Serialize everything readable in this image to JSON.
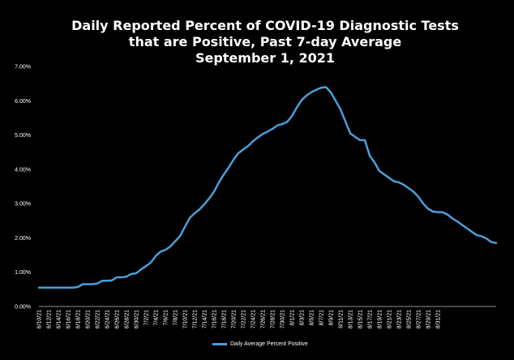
{
  "chart_data": {
    "type": "line",
    "title_lines": [
      "Daily Reported Percent of COVID-19 Diagnostic Tests",
      "that are Positive, Past 7-day Average",
      "September 1, 2021"
    ],
    "xlabel": "",
    "ylabel": "",
    "ylim": [
      0,
      0.07
    ],
    "y_ticks": [
      "0.00%",
      "1.00%",
      "2.00%",
      "3.00%",
      "4.00%",
      "5.00%",
      "6.00%",
      "7.00%"
    ],
    "x_tick_labels": [
      "6/10/21",
      "6/12/21",
      "6/14/21",
      "6/16/21",
      "6/18/21",
      "6/20/21",
      "6/22/21",
      "6/24/21",
      "6/26/21",
      "6/28/21",
      "6/30/21",
      "7/2/21",
      "7/4/21",
      "7/6/21",
      "7/8/21",
      "7/10/21",
      "7/12/21",
      "7/14/21",
      "7/16/21",
      "7/18/21",
      "7/20/21",
      "7/22/21",
      "7/24/21",
      "7/26/21",
      "7/28/21",
      "7/30/21",
      "8/1/21",
      "8/3/21",
      "8/5/21",
      "8/7/21",
      "8/9/21",
      "8/11/21",
      "8/13/21",
      "8/15/21",
      "8/17/21",
      "8/19/21",
      "8/21/21",
      "8/23/21",
      "8/25/21",
      "8/27/21",
      "8/29/21",
      "8/31/21"
    ],
    "x_start": "6/10/21",
    "grid": false,
    "legend_position": "bottom",
    "series": [
      {
        "name": "Daily Average Percent Positive",
        "color": "#4a9fd8",
        "values": [
          0.0055,
          0.0055,
          0.0055,
          0.0055,
          0.0055,
          0.0055,
          0.0055,
          0.0055,
          0.0057,
          0.0065,
          0.0065,
          0.0065,
          0.0067,
          0.0075,
          0.0075,
          0.0076,
          0.0085,
          0.0085,
          0.0087,
          0.0095,
          0.0097,
          0.0108,
          0.0118,
          0.0128,
          0.0147,
          0.016,
          0.0165,
          0.0175,
          0.019,
          0.0205,
          0.0232,
          0.0258,
          0.0272,
          0.0283,
          0.0298,
          0.0315,
          0.0335,
          0.0362,
          0.0385,
          0.0405,
          0.0428,
          0.0447,
          0.0458,
          0.0468,
          0.0482,
          0.0493,
          0.0503,
          0.051,
          0.0518,
          0.0528,
          0.0532,
          0.0538,
          0.0555,
          0.058,
          0.0602,
          0.0615,
          0.0625,
          0.0632,
          0.0638,
          0.064,
          0.0625,
          0.06,
          0.0575,
          0.054,
          0.0505,
          0.0495,
          0.0485,
          0.0485,
          0.044,
          0.042,
          0.0395,
          0.0385,
          0.0375,
          0.0365,
          0.0362,
          0.0355,
          0.0345,
          0.0335,
          0.032,
          0.03,
          0.0285,
          0.0277,
          0.0275,
          0.0275,
          0.0268,
          0.0257,
          0.0248,
          0.0238,
          0.0228,
          0.0218,
          0.0208,
          0.0205,
          0.0198,
          0.0188,
          0.0185
        ]
      }
    ]
  }
}
